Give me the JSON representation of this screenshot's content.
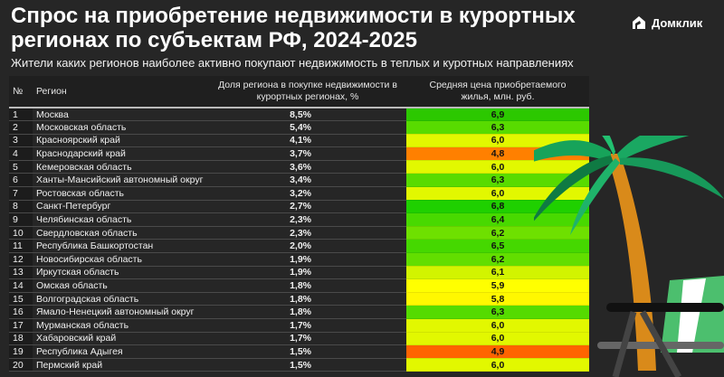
{
  "header": {
    "title": "Спрос на приобретение недвижимости в курортных регионах по субъектам РФ, 2024-2025",
    "subtitle": "Жители каких регионов наиболее активно покупают недвижимость в теплых и куротных направлениях",
    "logo": "Домклик"
  },
  "chart_data": {
    "type": "table",
    "title": "Спрос на приобретение недвижимости в курортных регионах по субъектам РФ, 2024-2025",
    "columns": [
      "№",
      "Регион",
      "Доля региона в покупке недвижимости в курортных регионах, %",
      "Средняя цена приобретаемого жилья, млн. руб."
    ],
    "rows": [
      {
        "n": "1",
        "region": "Москва",
        "share": "8,5%",
        "price": "6,9",
        "color": "#2cc800"
      },
      {
        "n": "2",
        "region": "Московская область",
        "share": "5,4%",
        "price": "6,3",
        "color": "#58db00"
      },
      {
        "n": "3",
        "region": "Красноярский край",
        "share": "4,1%",
        "price": "6,0",
        "color": "#e2f800"
      },
      {
        "n": "4",
        "region": "Краснодарский край",
        "share": "3,7%",
        "price": "4,8",
        "color": "#ff8000"
      },
      {
        "n": "5",
        "region": "Кемеровская область",
        "share": "3,6%",
        "price": "6,0",
        "color": "#e2f800"
      },
      {
        "n": "6",
        "region": "Ханты-Мансийский автономный округ",
        "share": "3,4%",
        "price": "6,3",
        "color": "#58db00"
      },
      {
        "n": "7",
        "region": "Ростовская область",
        "share": "3,2%",
        "price": "6,0",
        "color": "#e2f800"
      },
      {
        "n": "8",
        "region": "Санкт-Петербург",
        "share": "2,7%",
        "price": "6,8",
        "color": "#1fd000"
      },
      {
        "n": "9",
        "region": "Челябинская область",
        "share": "2,3%",
        "price": "6,4",
        "color": "#48d900"
      },
      {
        "n": "10",
        "region": "Свердловская область",
        "share": "2,3%",
        "price": "6,2",
        "color": "#6ee000"
      },
      {
        "n": "11",
        "region": "Республика Башкортостан",
        "share": "2,0%",
        "price": "6,5",
        "color": "#45d800"
      },
      {
        "n": "12",
        "region": "Новосибирская область",
        "share": "1,9%",
        "price": "6,2",
        "color": "#62de00"
      },
      {
        "n": "13",
        "region": "Иркутская область",
        "share": "1,9%",
        "price": "6,1",
        "color": "#d2f400"
      },
      {
        "n": "14",
        "region": "Омская область",
        "share": "1,8%",
        "price": "5,9",
        "color": "#ffff00"
      },
      {
        "n": "15",
        "region": "Волгоградская область",
        "share": "1,8%",
        "price": "5,8",
        "color": "#fff800"
      },
      {
        "n": "16",
        "region": "Ямало-Ненецкий автономный округ",
        "share": "1,8%",
        "price": "6,3",
        "color": "#55db00"
      },
      {
        "n": "17",
        "region": "Мурманская область",
        "share": "1,7%",
        "price": "6,0",
        "color": "#e2f800"
      },
      {
        "n": "18",
        "region": "Хабаровский край",
        "share": "1,7%",
        "price": "6,0",
        "color": "#e2f800"
      },
      {
        "n": "19",
        "region": "Республика Адыгея",
        "share": "1,5%",
        "price": "4,9",
        "color": "#ff6400"
      },
      {
        "n": "20",
        "region": "Пермский край",
        "share": "1,5%",
        "price": "6,0",
        "color": "#e2f800"
      }
    ]
  }
}
